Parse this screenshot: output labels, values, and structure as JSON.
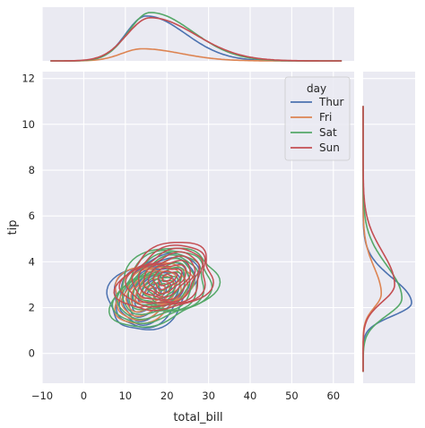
{
  "chart_data": {
    "type": "kde-jointplot",
    "xlabel": "total_bill",
    "ylabel": "tip",
    "xlim": [
      -10,
      65
    ],
    "ylim": [
      -1.3,
      12.3
    ],
    "xticks": [
      "−10",
      "0",
      "10",
      "20",
      "30",
      "40",
      "50",
      "60"
    ],
    "xtick_values": [
      -10,
      0,
      10,
      20,
      30,
      40,
      50,
      60
    ],
    "yticks": [
      "0",
      "2",
      "4",
      "6",
      "8",
      "10",
      "12"
    ],
    "ytick_values": [
      0,
      2,
      4,
      6,
      8,
      10,
      12
    ],
    "grid": true,
    "legend": {
      "title": "day",
      "placement": "top-right"
    },
    "series": [
      {
        "name": "Thur",
        "color": "#4c72b0",
        "x_marginal": {
          "peak": 15,
          "spread": 6.5,
          "height": 0.052
        },
        "y_marginal": {
          "peak": 2.2,
          "spread": 0.75,
          "height": 0.4
        },
        "contour": {
          "cx": 16.5,
          "cy": 2.7,
          "sx": 8.5,
          "sy": 1.6,
          "rho": 0.7,
          "outer_levels": 10
        }
      },
      {
        "name": "Fri",
        "color": "#dd8452",
        "x_marginal": {
          "peak": 14,
          "spread": 6.5,
          "height": 0.014
        },
        "y_marginal": {
          "peak": 2.6,
          "spread": 0.8,
          "height": 0.15
        },
        "contour": {
          "cx": 16,
          "cy": 2.7,
          "sx": 7.5,
          "sy": 1.3,
          "rho": 0.7,
          "outer_levels": 8
        }
      },
      {
        "name": "Sat",
        "color": "#55a868",
        "x_marginal": {
          "peak": 16,
          "spread": 7,
          "height": 0.056
        },
        "y_marginal": {
          "peak": 2.4,
          "spread": 1.0,
          "height": 0.32
        },
        "contour": {
          "cx": 19,
          "cy": 2.9,
          "sx": 10,
          "sy": 1.7,
          "rho": 0.72,
          "outer_levels": 11
        }
      },
      {
        "name": "Sun",
        "color": "#c44e52",
        "x_marginal": {
          "peak": 16,
          "spread": 7.5,
          "height": 0.05
        },
        "y_marginal": {
          "peak": 3.0,
          "spread": 1.0,
          "height": 0.26
        },
        "contour": {
          "cx": 20,
          "cy": 3.3,
          "sx": 9,
          "sy": 1.5,
          "rho": 0.6,
          "outer_levels": 10
        }
      }
    ]
  }
}
